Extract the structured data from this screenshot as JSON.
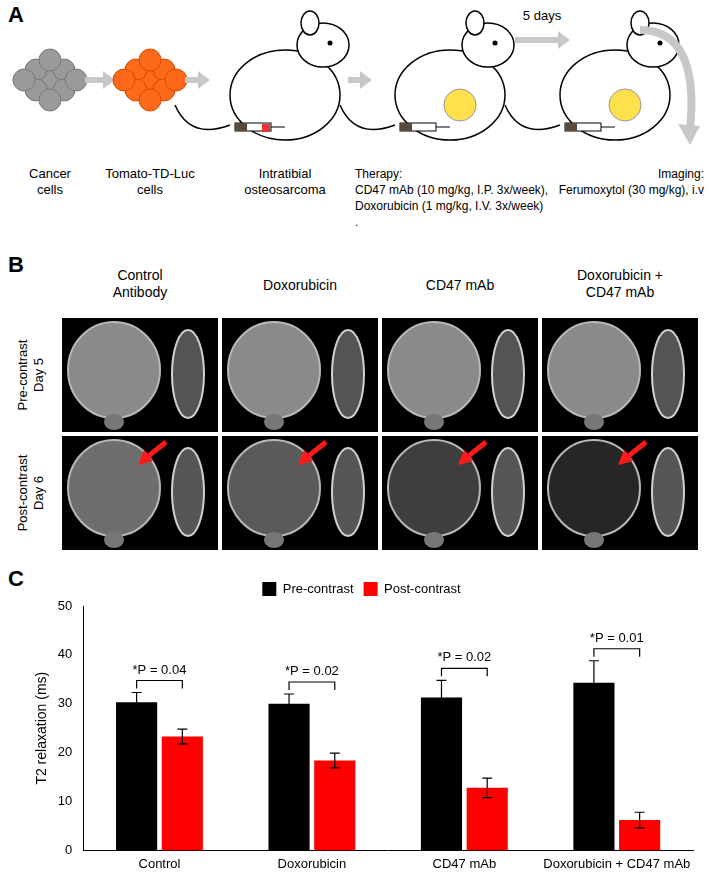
{
  "panel_labels": [
    "A",
    "B",
    "C"
  ],
  "panels": {
    "A": {
      "captions": [
        [
          "Cancer",
          "cells"
        ],
        [
          "Tomato-TD-Luc",
          "cells"
        ],
        [
          "Intratibial",
          "osteosarcoma"
        ]
      ],
      "therapy": [
        "Therapy:",
        "CD47 mAb (10 mg/kg, I.P. 3x/week),",
        "Doxorubicin (1 mg/kg, I.V. 3x/week)",
        "."
      ],
      "interval": "5 days",
      "imaging": [
        "Imaging:",
        "Ferumoxytol (30 mg/kg), i.v"
      ]
    },
    "B": {
      "columns": [
        [
          "Control",
          "Antibody"
        ],
        [
          "Doxorubicin"
        ],
        [
          "CD47 mAb"
        ],
        [
          "Doxorubicin +",
          "CD47 mAb"
        ]
      ],
      "rows": [
        [
          "Pre-contrast",
          "Day 5"
        ],
        [
          "Post-contrast",
          "Day 6"
        ]
      ]
    }
  },
  "chart_data": {
    "type": "bar",
    "categories": [
      "Control",
      "Doxorubicin",
      "CD47 mAb",
      "Doxorubicin + CD47 mAb"
    ],
    "series": [
      {
        "name": "Pre-contrast",
        "color": "#000000",
        "values": [
          30.3,
          30.0,
          31.3,
          34.3
        ],
        "error": [
          2.0,
          2.0,
          3.5,
          4.5
        ]
      },
      {
        "name": "Post-contrast",
        "color": "#ff0000",
        "values": [
          23.3,
          18.4,
          12.8,
          6.2
        ],
        "error": [
          1.5,
          1.5,
          2.0,
          1.6
        ]
      }
    ],
    "y_label": "T2 relaxation (ms)",
    "ylim": [
      0,
      50
    ],
    "yticks": [
      0,
      10,
      20,
      30,
      40,
      50
    ],
    "grid": false,
    "legend": "top",
    "annotations": [
      "*P = 0.04",
      "*P = 0.02",
      "*P = 0.02",
      "*P = 0.01"
    ]
  }
}
